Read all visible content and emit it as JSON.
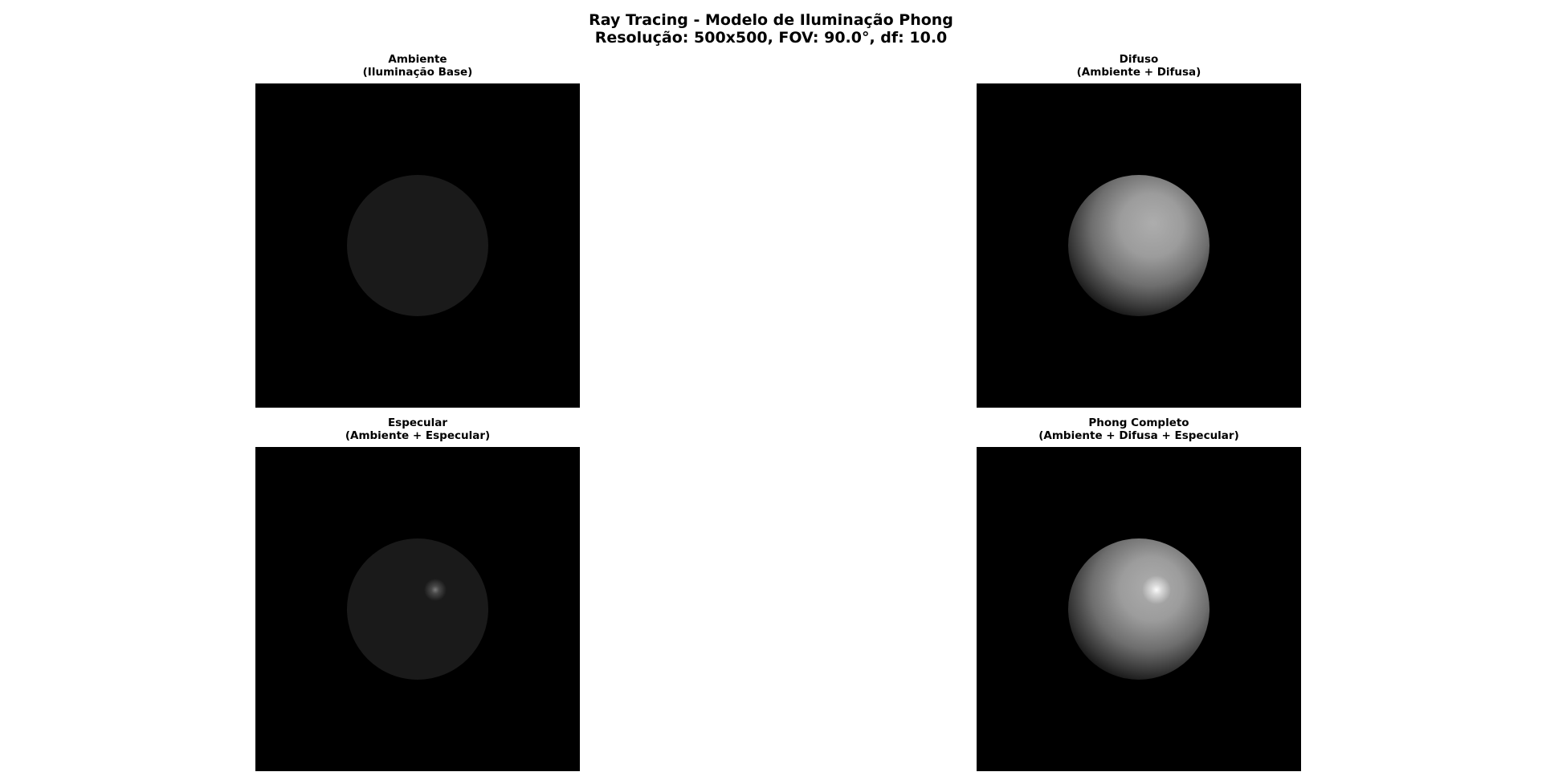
{
  "figure": {
    "title_line1": "Ray Tracing - Modelo de Iluminação Phong",
    "title_line2": "Resolução: 500x500, FOV: 90.0°, df: 10.0"
  },
  "panels": [
    {
      "title": "Ambiente",
      "subtitle": "(Iluminação Base)",
      "ambient": 0.1,
      "diffuse": false,
      "specular": false
    },
    {
      "title": "Difuso",
      "subtitle": "(Ambiente + Difusa)",
      "ambient": 0.1,
      "diffuse": true,
      "specular": false
    },
    {
      "title": "Especular",
      "subtitle": "(Ambiente + Especular)",
      "ambient": 0.1,
      "diffuse": false,
      "specular": true
    },
    {
      "title": "Phong Completo",
      "subtitle": "(Ambiente + Difusa + Especular)",
      "ambient": 0.1,
      "diffuse": true,
      "specular": true
    }
  ],
  "colors": {
    "background": "#000000",
    "sphere_ambient": "#1a1a1a",
    "sphere_lit": "#aaaaaa",
    "highlight": "#ffffff"
  }
}
